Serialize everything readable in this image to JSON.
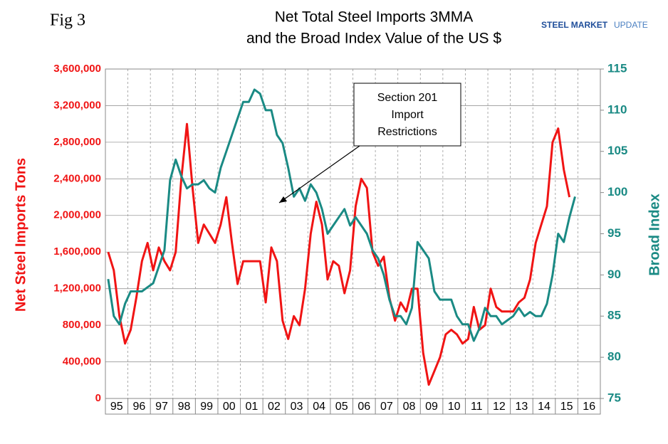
{
  "chart_data": {
    "type": "line",
    "figure_label": "Fig 3",
    "title": [
      "Net Total Steel Imports 3MMA",
      "and the Broad Index Value of the US $"
    ],
    "logo": [
      "STEEL MARKET",
      "UPDATE"
    ],
    "annotation": [
      "Section 201",
      "Import",
      "Restrictions"
    ],
    "y_label": "Net Steel Imports Tons",
    "y2_label": "Broad Index",
    "grid": true,
    "categories": [
      "95",
      null,
      null,
      null,
      "96",
      null,
      null,
      null,
      "97",
      null,
      null,
      null,
      "98",
      null,
      null,
      null,
      "99",
      null,
      null,
      null,
      "00",
      null,
      null,
      null,
      "01",
      null,
      null,
      null,
      "02",
      null,
      null,
      null,
      "03",
      null,
      null,
      null,
      "04",
      null,
      null,
      null,
      "05",
      null,
      null,
      null,
      "06",
      null,
      null,
      null,
      "07",
      null,
      null,
      null,
      "08",
      null,
      null,
      null,
      "09",
      null,
      null,
      null,
      "10",
      null,
      null,
      null,
      "11",
      null,
      null,
      null,
      "12",
      null,
      null,
      null,
      "13",
      null,
      null,
      null,
      "14",
      null,
      null,
      null,
      "15",
      null,
      null,
      null,
      "16",
      null,
      null,
      null
    ],
    "ylim": [
      0,
      3600000
    ],
    "yticks": [
      {
        "value": 0,
        "label": "0"
      },
      {
        "value": 400000,
        "label": "400,000"
      },
      {
        "value": 800000,
        "label": "800,000"
      },
      {
        "value": 1200000,
        "label": "1,200,000"
      },
      {
        "value": 1600000,
        "label": "1,600,000"
      },
      {
        "value": 2000000,
        "label": "2,000,000"
      },
      {
        "value": 2400000,
        "label": "2,400,000"
      },
      {
        "value": 2800000,
        "label": "2,800,000"
      },
      {
        "value": 3200000,
        "label": "3,200,000"
      },
      {
        "value": 3600000,
        "label": "3,600,000"
      }
    ],
    "y2lim": [
      75,
      115
    ],
    "y2ticks": [
      75,
      80,
      85,
      90,
      95,
      100,
      105,
      110,
      115
    ],
    "series": [
      {
        "name": "Net Steel Imports Tons",
        "color": "#f01414",
        "axis": "y",
        "values": [
          1600000,
          1400000,
          900000,
          600000,
          750000,
          1100000,
          1500000,
          1700000,
          1400000,
          1650000,
          1500000,
          1400000,
          1600000,
          2400000,
          3000000,
          2300000,
          1700000,
          1900000,
          1800000,
          1700000,
          1900000,
          2200000,
          1700000,
          1250000,
          1500000,
          1500000,
          1500000,
          1500000,
          1050000,
          1650000,
          1500000,
          850000,
          650000,
          900000,
          800000,
          1200000,
          1800000,
          2150000,
          1900000,
          1300000,
          1500000,
          1450000,
          1150000,
          1400000,
          2100000,
          2400000,
          2300000,
          1600000,
          1450000,
          1550000,
          1100000,
          850000,
          1050000,
          950000,
          1200000,
          1200000,
          500000,
          150000,
          300000,
          450000,
          700000,
          750000,
          700000,
          600000,
          650000,
          1000000,
          750000,
          800000,
          1200000,
          1000000,
          950000,
          950000,
          950000,
          1050000,
          1100000,
          1300000,
          1700000,
          1900000,
          2100000,
          2800000,
          2950000,
          2500000,
          2200000,
          null,
          null,
          null,
          null,
          null
        ]
      },
      {
        "name": "Broad Index",
        "color": "#1a8a84",
        "axis": "y2",
        "values": [
          89.5,
          85,
          84,
          86.5,
          88,
          88,
          88,
          88.5,
          89,
          91,
          93,
          101.5,
          104,
          102,
          100.5,
          101,
          101,
          101.5,
          100.5,
          100,
          103,
          105,
          107,
          109,
          111,
          111,
          112.5,
          112,
          110,
          110,
          107,
          106,
          103,
          99.5,
          100.5,
          99,
          101,
          100,
          98,
          95,
          96,
          97,
          98,
          96,
          97,
          96,
          95,
          93,
          92,
          90,
          87,
          85,
          85,
          84,
          86,
          94,
          93,
          92,
          88,
          87,
          87,
          87,
          85,
          84,
          84,
          82,
          83.5,
          86,
          85,
          85,
          84,
          84.5,
          85,
          86,
          85,
          85.5,
          85,
          85,
          86.5,
          90,
          95,
          94,
          97,
          99.5,
          null,
          null,
          null,
          null
        ]
      }
    ]
  }
}
